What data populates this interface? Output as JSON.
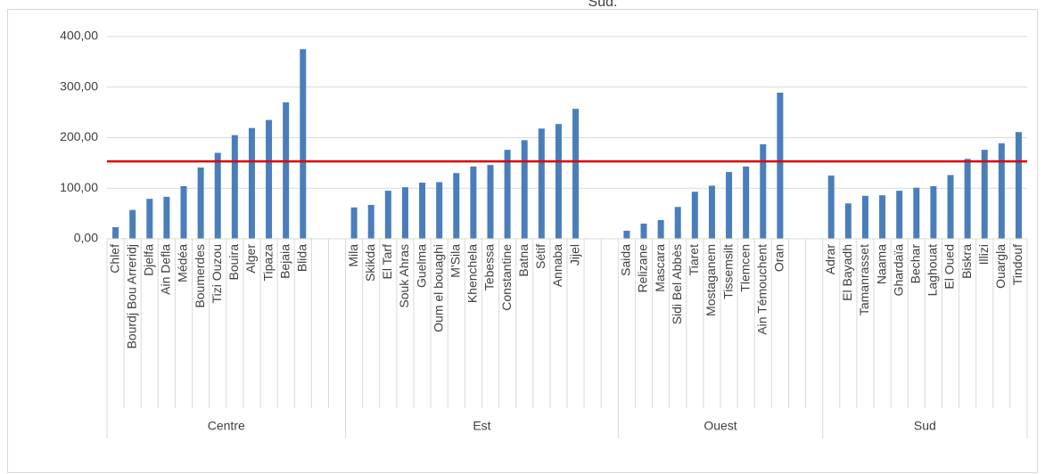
{
  "chart_data": {
    "type": "bar",
    "title": "Sud.",
    "color": "#4a7ebb",
    "ylim": [
      0,
      400
    ],
    "yticks": [
      {
        "value": 0,
        "label": "0,00"
      },
      {
        "value": 100,
        "label": "100,00"
      },
      {
        "value": 200,
        "label": "200,00"
      },
      {
        "value": 300,
        "label": "300,00"
      },
      {
        "value": 400,
        "label": "400,00"
      }
    ],
    "grid": true,
    "reference_line": {
      "value": 153,
      "color": "#e00000"
    },
    "groups": [
      {
        "name": "Centre",
        "categories": [
          "Chlef",
          "Bourdj Bou Arreridj",
          "Djelfa",
          "Ain Defla",
          "Médéa",
          "Boumerdes",
          "Tizi Ouzou",
          "Bouira",
          "Alger",
          "Tipaza",
          "Bejaia",
          "Blida",
          null,
          null
        ],
        "values": [
          23,
          57,
          79,
          83,
          104,
          141,
          170,
          205,
          219,
          235,
          270,
          375,
          null,
          null
        ]
      },
      {
        "name": "Est",
        "categories": [
          "Mila",
          "Skikda",
          "El Tarf",
          "Souk Ahras",
          "Guelma",
          "Oum el bouaghi",
          "M'Sila",
          "Khenchela",
          "Tebessa",
          "Constantine",
          "Batna",
          "Sétif",
          "Annaba",
          "Jijel",
          null,
          null
        ],
        "values": [
          62,
          67,
          95,
          102,
          111,
          112,
          130,
          143,
          146,
          176,
          195,
          218,
          227,
          257,
          null,
          null
        ]
      },
      {
        "name": "Ouest",
        "categories": [
          "Saida",
          "Relizane",
          "Mascara",
          "Sidi Bel Abbès",
          "Tiaret",
          "Mostaganem",
          "Tissemsilt",
          "Tlemcen",
          "Ain Témouchent",
          "Oran",
          null,
          null
        ],
        "values": [
          16,
          30,
          37,
          63,
          93,
          105,
          132,
          143,
          187,
          289,
          null,
          null
        ]
      },
      {
        "name": "Sud",
        "categories": [
          "Adrar",
          "El Bayadh",
          "Tamanrasset",
          "Naama",
          "Ghardaïa",
          "Bechar",
          "Laghouat",
          "El Oued",
          "Biskra",
          "Illizi",
          "Ouargla",
          "Tindouf"
        ],
        "values": [
          125,
          70,
          85,
          86,
          95,
          101,
          104,
          126,
          158,
          176,
          189,
          211
        ]
      }
    ]
  }
}
